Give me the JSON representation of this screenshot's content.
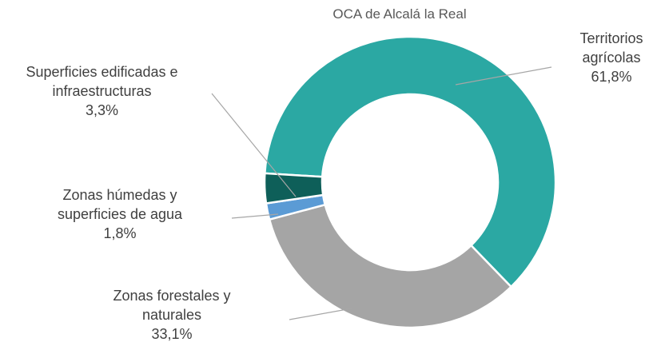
{
  "chart_data": {
    "type": "donut",
    "title": "OCA de Alcalá la Real",
    "categories": [
      "Territorios agrícolas",
      "Zonas forestales y naturales",
      "Zonas húmedas y superficies de agua",
      "Superficies edificadas e infraestructuras"
    ],
    "values": [
      61.8,
      33.1,
      1.8,
      3.3
    ],
    "value_labels": [
      "61,8%",
      "33,1%",
      "1,8%",
      "3,3%"
    ],
    "colors": [
      "#2ba8a3",
      "#a5a5a5",
      "#5b9bd5",
      "#0e5f59"
    ]
  }
}
